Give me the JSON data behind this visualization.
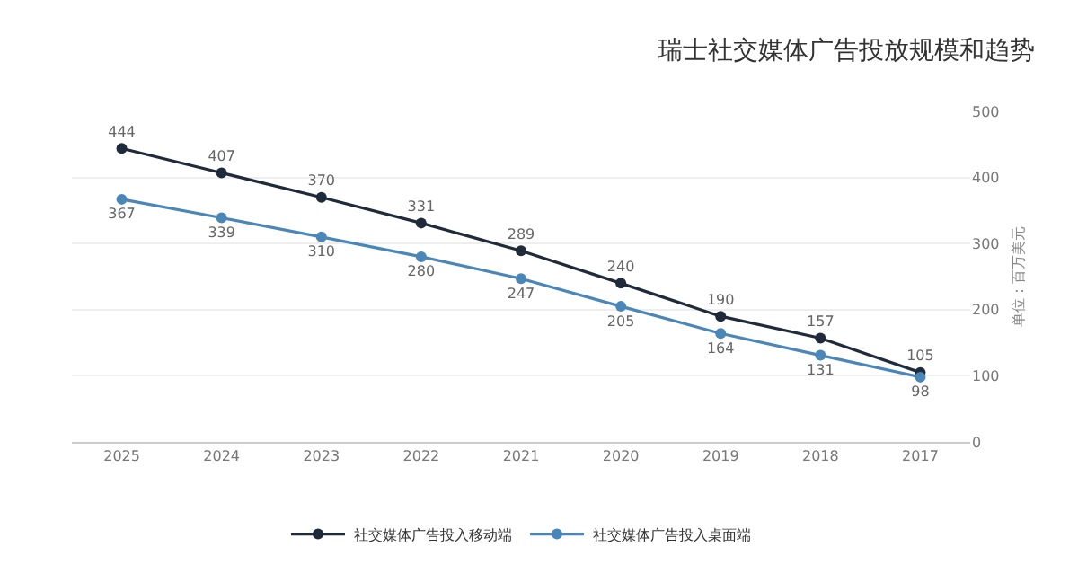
{
  "chart_data": {
    "type": "line",
    "title": "瑞士社交媒体广告投放规模和趋势",
    "ylabel": "单位：百万美元",
    "categories": [
      "2025",
      "2024",
      "2023",
      "2022",
      "2021",
      "2020",
      "2019",
      "2018",
      "2017"
    ],
    "series": [
      {
        "name": "社交媒体广告投入移动端",
        "color": "#1f2a3a",
        "values": [
          444,
          407,
          370,
          331,
          289,
          240,
          190,
          157,
          105
        ]
      },
      {
        "name": "社交媒体广告投入桌面端",
        "color": "#4a86b8",
        "values": [
          367,
          339,
          310,
          280,
          247,
          205,
          164,
          131,
          98
        ]
      }
    ],
    "ylim": [
      0,
      500
    ],
    "yticks": [
      0,
      100,
      200,
      300,
      400,
      500
    ],
    "grid": "y",
    "legend": "bottom",
    "marker": "circle",
    "data_labels": true
  }
}
